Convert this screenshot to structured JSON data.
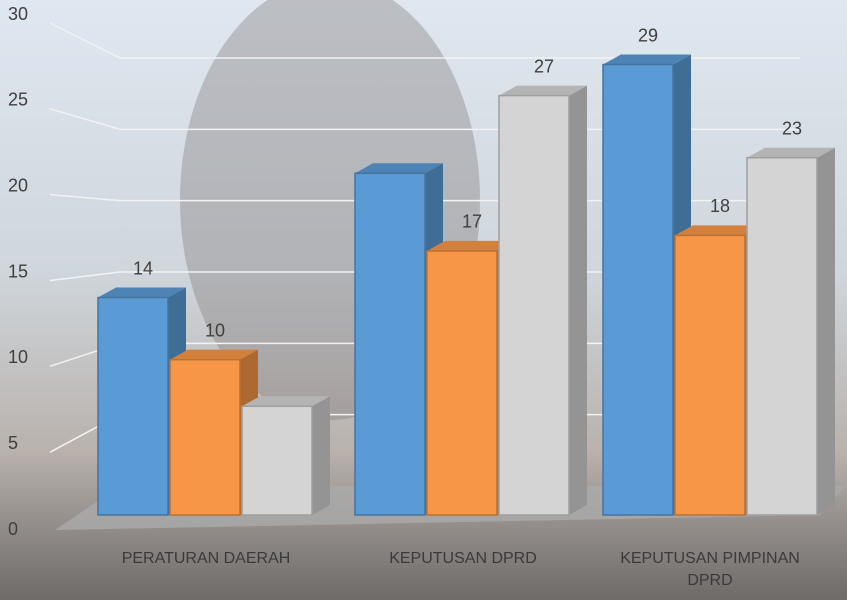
{
  "chart_data": {
    "type": "bar3d",
    "categories": [
      "PERATURAN DAERAH",
      "KEPUTUSAN DPRD",
      "KEPUTUSAN PIMPINAN DPRD"
    ],
    "series": [
      {
        "color": "#5b9bd5",
        "values": [
          14,
          22,
          29
        ],
        "value_labels": [
          "14",
          null,
          "29"
        ]
      },
      {
        "color": "#f79646",
        "values": [
          10,
          17,
          18
        ],
        "value_labels": [
          "10",
          "17",
          "18"
        ]
      },
      {
        "color": "#d4d4d4",
        "values": [
          7,
          27,
          23
        ],
        "value_labels": [
          null,
          "27",
          "23"
        ]
      }
    ],
    "ylim": [
      0,
      30
    ],
    "yticks": [
      0,
      5,
      10,
      15,
      20,
      25,
      30
    ],
    "grid": true
  }
}
